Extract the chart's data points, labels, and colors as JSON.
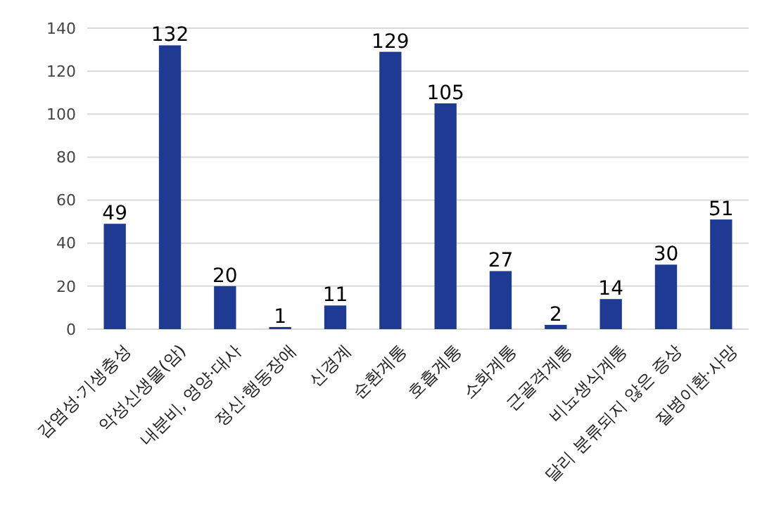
{
  "chart_data": {
    "type": "bar",
    "categories": [
      "감염성·기생충성",
      "악성신생물(암)",
      "내분비, 영양·대사",
      "정신·행동장애",
      "신경계",
      "순환계통",
      "호흡계통",
      "소화계통",
      "근골격계통",
      "비뇨생식계통",
      "달리 분류되지 않은 증상",
      "질병이환·사망"
    ],
    "values": [
      49,
      132,
      20,
      1,
      11,
      129,
      105,
      27,
      2,
      14,
      30,
      51
    ],
    "color": "#1f3a93",
    "ylim": [
      0,
      140
    ],
    "yticks": [
      0,
      20,
      40,
      60,
      80,
      100,
      120,
      140
    ],
    "grid": "y",
    "data_labels": true
  }
}
